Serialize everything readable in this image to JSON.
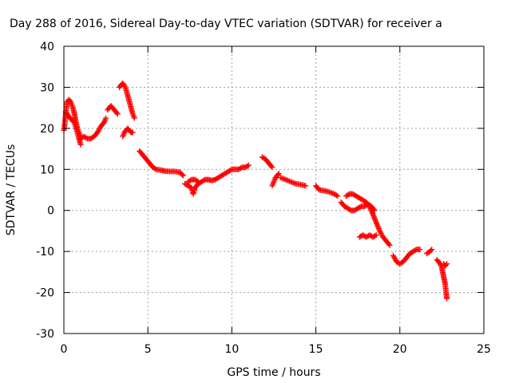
{
  "chart_data": {
    "type": "scatter",
    "title": "Day 288 of 2016, Sidereal Day-to-day VTEC variation (SDTVAR) for receiver a",
    "xlabel": "GPS time / hours",
    "ylabel": "SDTVAR / TECUs",
    "xlim": [
      0,
      25
    ],
    "ylim": [
      -30,
      40
    ],
    "xticks": [
      0,
      5,
      10,
      15,
      20,
      25
    ],
    "yticks": [
      -30,
      -20,
      -10,
      0,
      10,
      20,
      30,
      40
    ],
    "grid": true,
    "marker": "plus",
    "colors": {
      "series": "#ff0000",
      "grid": "#a0a0a0",
      "axis": "#000000"
    },
    "series": [
      {
        "segments": [
          [
            [
              0.0,
              19.5
            ],
            [
              0.05,
              21
            ],
            [
              0.1,
              23
            ],
            [
              0.15,
              25
            ],
            [
              0.2,
              26.5
            ],
            [
              0.3,
              27
            ],
            [
              0.4,
              26.5
            ],
            [
              0.5,
              25.5
            ],
            [
              0.6,
              24
            ],
            [
              0.7,
              22
            ],
            [
              0.8,
              20
            ],
            [
              0.9,
              19
            ],
            [
              1.0,
              18
            ]
          ],
          [
            [
              0.1,
              24
            ],
            [
              0.2,
              23.5
            ],
            [
              0.35,
              22.5
            ],
            [
              0.5,
              22
            ],
            [
              0.6,
              21.5
            ],
            [
              0.7,
              20.5
            ],
            [
              0.8,
              19
            ],
            [
              0.9,
              17.5
            ],
            [
              1.0,
              16
            ]
          ],
          [
            [
              1.0,
              17.5
            ],
            [
              1.2,
              18
            ],
            [
              1.4,
              17.5
            ],
            [
              1.6,
              17.5
            ],
            [
              1.8,
              18
            ],
            [
              2.0,
              19
            ],
            [
              2.2,
              20.5
            ],
            [
              2.4,
              21.5
            ],
            [
              2.5,
              22.5
            ]
          ],
          [
            [
              2.6,
              24.5
            ],
            [
              2.7,
              25
            ],
            [
              2.8,
              25.5
            ],
            [
              2.9,
              25
            ],
            [
              3.0,
              24.5
            ],
            [
              3.1,
              24
            ],
            [
              3.2,
              23.5
            ]
          ],
          [
            [
              3.3,
              30
            ],
            [
              3.4,
              30.5
            ],
            [
              3.5,
              31
            ],
            [
              3.6,
              30.5
            ],
            [
              3.7,
              29.5
            ],
            [
              3.8,
              28
            ],
            [
              3.9,
              26.5
            ],
            [
              4.0,
              25
            ],
            [
              4.1,
              23.5
            ],
            [
              4.2,
              22.5
            ]
          ],
          [
            [
              3.5,
              18
            ],
            [
              3.6,
              19
            ],
            [
              3.7,
              19.5
            ],
            [
              3.8,
              20
            ],
            [
              3.9,
              19.5
            ],
            [
              4.0,
              19
            ],
            [
              4.1,
              19
            ]
          ],
          [
            [
              4.5,
              14.5
            ],
            [
              4.7,
              13.5
            ],
            [
              4.9,
              12.5
            ],
            [
              5.1,
              11.5
            ],
            [
              5.3,
              10.5
            ],
            [
              5.5,
              10
            ],
            [
              5.8,
              9.8
            ],
            [
              6.0,
              9.6
            ],
            [
              6.3,
              9.5
            ],
            [
              6.6,
              9.5
            ],
            [
              6.9,
              9.3
            ],
            [
              7.1,
              8.5
            ]
          ],
          [
            [
              7.2,
              6.5
            ],
            [
              7.4,
              6
            ],
            [
              7.6,
              5.5
            ],
            [
              7.7,
              4
            ],
            [
              7.8,
              5.5
            ],
            [
              8.0,
              6.5
            ],
            [
              8.2,
              7
            ],
            [
              8.4,
              7.5
            ],
            [
              8.6,
              7.5
            ],
            [
              8.8,
              7.3
            ],
            [
              9.0,
              7.5
            ],
            [
              9.2,
              8
            ],
            [
              9.4,
              8.5
            ],
            [
              9.6,
              9
            ],
            [
              9.8,
              9.5
            ],
            [
              10.0,
              10
            ],
            [
              10.2,
              10
            ],
            [
              10.4,
              10
            ],
            [
              10.6,
              10.5
            ],
            [
              10.8,
              10.5
            ],
            [
              11.0,
              11
            ]
          ],
          [
            [
              7.4,
              7
            ],
            [
              7.6,
              7.5
            ],
            [
              7.8,
              7.5
            ],
            [
              8.0,
              7
            ]
          ],
          [
            [
              11.8,
              13
            ],
            [
              12.0,
              12.5
            ],
            [
              12.2,
              11.5
            ],
            [
              12.4,
              10.5
            ]
          ],
          [
            [
              12.4,
              6
            ],
            [
              12.5,
              7
            ],
            [
              12.6,
              8
            ],
            [
              12.7,
              8.5
            ],
            [
              12.8,
              9
            ]
          ],
          [
            [
              12.9,
              8
            ],
            [
              13.2,
              7.5
            ],
            [
              13.5,
              7
            ],
            [
              13.8,
              6.5
            ],
            [
              14.1,
              6.3
            ],
            [
              14.4,
              6
            ]
          ],
          [
            [
              15.0,
              6
            ],
            [
              15.2,
              5
            ],
            [
              15.5,
              4.8
            ],
            [
              15.8,
              4.5
            ],
            [
              16.1,
              4
            ],
            [
              16.3,
              3.5
            ]
          ],
          [
            [
              16.5,
              2
            ],
            [
              16.7,
              1
            ],
            [
              16.9,
              0.5
            ],
            [
              17.1,
              0
            ],
            [
              17.3,
              0
            ],
            [
              17.5,
              0.5
            ],
            [
              17.7,
              1
            ],
            [
              17.9,
              1
            ],
            [
              18.1,
              1.5
            ],
            [
              18.3,
              1
            ],
            [
              18.5,
              0
            ]
          ],
          [
            [
              16.8,
              3.5
            ],
            [
              17.0,
              4
            ],
            [
              17.2,
              4
            ],
            [
              17.4,
              3.5
            ],
            [
              17.6,
              3
            ],
            [
              17.8,
              2.5
            ],
            [
              18.0,
              2
            ],
            [
              18.2,
              1
            ],
            [
              18.4,
              -1
            ],
            [
              18.6,
              -3
            ],
            [
              18.8,
              -5
            ],
            [
              19.0,
              -6.5
            ],
            [
              19.2,
              -7.5
            ],
            [
              19.4,
              -8.5
            ]
          ],
          [
            [
              17.6,
              -6.5
            ],
            [
              17.8,
              -6
            ],
            [
              18.0,
              -6.5
            ],
            [
              18.2,
              -6
            ],
            [
              18.4,
              -6.5
            ],
            [
              18.6,
              -6
            ]
          ],
          [
            [
              19.6,
              -11
            ],
            [
              19.8,
              -12.5
            ],
            [
              20.0,
              -13
            ],
            [
              20.2,
              -12.5
            ],
            [
              20.4,
              -11.5
            ],
            [
              20.6,
              -10.5
            ],
            [
              20.8,
              -10
            ],
            [
              21.0,
              -9.5
            ],
            [
              21.2,
              -9.5
            ]
          ],
          [
            [
              21.6,
              -10.5
            ],
            [
              21.8,
              -10
            ],
            [
              21.9,
              -9.5
            ]
          ],
          [
            [
              22.2,
              -12
            ],
            [
              22.3,
              -12.5
            ],
            [
              22.4,
              -13
            ],
            [
              22.5,
              -14
            ],
            [
              22.6,
              -16
            ],
            [
              22.7,
              -18
            ],
            [
              22.75,
              -20
            ],
            [
              22.8,
              -21.5
            ]
          ],
          [
            [
              22.6,
              -13
            ],
            [
              22.7,
              -13.5
            ],
            [
              22.8,
              -13
            ]
          ]
        ]
      }
    ]
  }
}
